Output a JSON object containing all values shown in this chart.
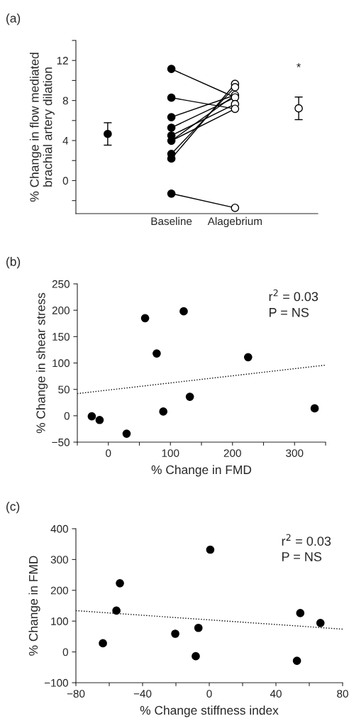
{
  "chart_data": [
    {
      "type": "line",
      "title": "(a)",
      "ylabel": "% Change in flow mediated\nbrachial artery dilation",
      "categories": [
        null,
        "Baseline",
        "Alagebrium",
        null
      ],
      "ylim": [
        -3.3,
        14
      ],
      "yticks": [
        {
          "value": -2,
          "label": null
        },
        0,
        {
          "value": 2,
          "label": null
        },
        4,
        {
          "value": 6,
          "label": null
        },
        8,
        {
          "value": 10,
          "label": null
        },
        12,
        {
          "value": 14,
          "label": null
        }
      ],
      "grid": false,
      "legend": false,
      "annotations": [
        "*"
      ],
      "series": [
        {
          "values": [
            null,
            11.15,
            8.31,
            null
          ],
          "color": "#000000",
          "marker": "none"
        },
        {
          "values": [
            null,
            8.28,
            7.17,
            null
          ],
          "color": "#000000",
          "marker": "none"
        },
        {
          "values": [
            null,
            6.34,
            8.54,
            null
          ],
          "color": "#000000",
          "marker": "none"
        },
        {
          "values": [
            null,
            5.28,
            8.31,
            null
          ],
          "color": "#000000",
          "marker": "none"
        },
        {
          "values": [
            null,
            4.5,
            7.64,
            null
          ],
          "color": "#000000",
          "marker": "none"
        },
        {
          "values": [
            null,
            3.98,
            7.17,
            null
          ],
          "color": "#000000",
          "marker": "none"
        },
        {
          "values": [
            null,
            3.98,
            8.54,
            null
          ],
          "color": "#000000",
          "marker": "none"
        },
        {
          "values": [
            null,
            2.67,
            9.33,
            null
          ],
          "color": "#000000",
          "marker": "none"
        },
        {
          "values": [
            null,
            2.2,
            9.66,
            null
          ],
          "color": "#000000",
          "marker": "none"
        },
        {
          "values": [
            null,
            -1.3,
            -2.72,
            null
          ],
          "color": "#000000",
          "marker": "none"
        },
        {
          "type": "scatter",
          "x": [
            "Baseline",
            "Baseline",
            "Baseline",
            "Baseline",
            "Baseline",
            "Baseline",
            "Baseline",
            "Baseline",
            "Baseline"
          ],
          "values": [
            11.15,
            8.28,
            6.34,
            5.28,
            4.5,
            3.98,
            2.67,
            2.2,
            -1.3
          ],
          "color": "#000000",
          "marker": "circle"
        },
        {
          "type": "scatter",
          "x": [
            "Alagebrium",
            "Alagebrium",
            "Alagebrium",
            "Alagebrium",
            "Alagebrium",
            "Alagebrium",
            "Alagebrium"
          ],
          "values": [
            9.66,
            9.33,
            8.54,
            8.31,
            7.64,
            7.17,
            -2.72
          ],
          "color": "#ffffff",
          "marker": "circle"
        },
        {
          "type": "scatter",
          "values": [
            4.66,
            null,
            null,
            7.22
          ],
          "errors": [
            1.12,
            null,
            null,
            1.13
          ],
          "colors": [
            "#000000",
            null,
            null,
            "#ffffff"
          ],
          "marker": "circle"
        }
      ]
    },
    {
      "type": "scatter",
      "title": "(b)",
      "xlabel": "% Change in FMD",
      "ylabel": "% Change in shear stress",
      "xlim": [
        -50,
        350
      ],
      "xticks": [
        {
          "value": -50,
          "label": null
        },
        0,
        {
          "value": 50,
          "label": null
        },
        100,
        {
          "value": 150,
          "label": null
        },
        200,
        {
          "value": 250,
          "label": null
        },
        300,
        {
          "value": 350,
          "label": null
        }
      ],
      "ylim": [
        -50,
        250
      ],
      "yticks": [
        {
          "value": -50,
          "label": "−50"
        },
        0,
        50,
        100,
        150,
        200,
        250
      ],
      "grid": false,
      "legend": false,
      "annotations": [
        "r$^{2}$ = 0.03",
        "P = NS"
      ],
      "series": [
        {
          "x": [
            -26.7,
            -14.1,
            29.4,
            59.2,
            77.9,
            88.5,
            121.4,
            131.3,
            225.2,
            332.4
          ],
          "values": [
            -1,
            -8,
            -34,
            185,
            118,
            8,
            198,
            36,
            111,
            14
          ],
          "color": "#000000",
          "marker": "circle"
        },
        {
          "type": "line",
          "x": [
            -50,
            350
          ],
          "values": [
            42,
            96
          ],
          "color": "#000000",
          "marker": "none",
          "line_style": "dotted"
        }
      ]
    },
    {
      "type": "scatter",
      "title": "(c)",
      "xlabel": "% Change stiffness index",
      "ylabel": "% Change in FMD",
      "xlim": [
        -80,
        80
      ],
      "xticks": [
        {
          "value": -80,
          "label": "−80"
        },
        {
          "value": -60,
          "label": null
        },
        {
          "value": -40,
          "label": "−40"
        },
        {
          "value": -20,
          "label": null
        },
        0,
        {
          "value": 20,
          "label": null
        },
        40,
        {
          "value": 60,
          "label": null
        },
        80
      ],
      "ylim": [
        -100,
        400
      ],
      "yticks": [
        {
          "value": -100,
          "label": "−100"
        },
        0,
        100,
        200,
        300,
        400
      ],
      "grid": false,
      "legend": false,
      "annotations": [
        "r$^{2}$ = 0.03",
        "P = NS"
      ],
      "series": [
        {
          "x": [
            -63.8,
            -55.7,
            -53.6,
            -20.4,
            -8.1,
            -6.5,
            0.6,
            52.6,
            54.6,
            66.7
          ],
          "values": [
            28,
            134,
            223,
            59,
            -14,
            78,
            332,
            -29,
            126,
            94
          ],
          "color": "#000000",
          "marker": "circle"
        },
        {
          "type": "line",
          "x": [
            -80,
            80
          ],
          "values": [
            134,
            74
          ],
          "color": "#000000",
          "marker": "none",
          "line_style": "dotted"
        }
      ]
    }
  ]
}
